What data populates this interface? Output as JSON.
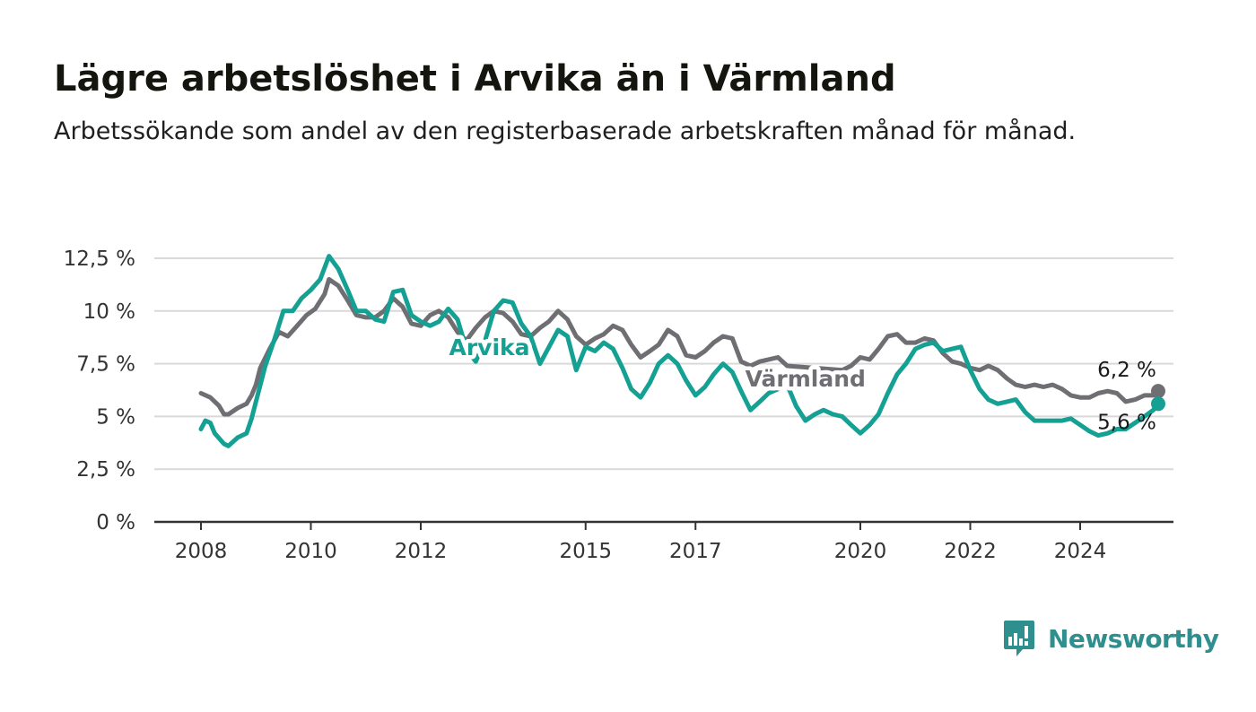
{
  "header": {
    "title": "Lägre arbetslöshet i Arvika än i Värmland",
    "subtitle": "Arbetssökande som andel av den registerbaserade arbetskraften månad för månad."
  },
  "brand": {
    "name": "Newsworthy",
    "color": "#2f8e8e"
  },
  "chart_data": {
    "type": "line",
    "title": "Lägre arbetslöshet i Arvika än i Värmland",
    "subtitle": "Arbetssökande som andel av den registerbaserade arbetskraften månad för månad.",
    "xlabel": "",
    "ylabel": "",
    "ylim": [
      0,
      12.5
    ],
    "xlim": [
      2007.3,
      2025.75
    ],
    "yticks": [
      0,
      2.5,
      5,
      7.5,
      10,
      12.5
    ],
    "ytick_labels": [
      "0 %",
      "2,5 %",
      "5 %",
      "7,5 %",
      "10 %",
      "12,5 %"
    ],
    "xticks": [
      2008,
      2010,
      2012,
      2015,
      2017,
      2020,
      2022,
      2024
    ],
    "xtick_labels": [
      "2008",
      "2010",
      "2012",
      "2015",
      "2017",
      "2020",
      "2022",
      "2024"
    ],
    "grid": true,
    "series": [
      {
        "name": "Värmland",
        "color": "#6e6e73",
        "end_label": "6,2 %",
        "points": [
          [
            2008.0,
            6.1
          ],
          [
            2008.17,
            5.9
          ],
          [
            2008.33,
            5.5
          ],
          [
            2008.42,
            5.1
          ],
          [
            2008.5,
            5.1
          ],
          [
            2008.67,
            5.4
          ],
          [
            2008.83,
            5.6
          ],
          [
            2008.92,
            6.0
          ],
          [
            2009.0,
            6.5
          ],
          [
            2009.08,
            7.3
          ],
          [
            2009.25,
            8.2
          ],
          [
            2009.42,
            9.0
          ],
          [
            2009.58,
            8.8
          ],
          [
            2009.75,
            9.3
          ],
          [
            2009.92,
            9.8
          ],
          [
            2010.08,
            10.1
          ],
          [
            2010.25,
            10.8
          ],
          [
            2010.33,
            11.5
          ],
          [
            2010.5,
            11.2
          ],
          [
            2010.67,
            10.5
          ],
          [
            2010.83,
            9.8
          ],
          [
            2011.0,
            9.7
          ],
          [
            2011.17,
            9.7
          ],
          [
            2011.33,
            10.0
          ],
          [
            2011.5,
            10.6
          ],
          [
            2011.67,
            10.2
          ],
          [
            2011.83,
            9.4
          ],
          [
            2012.0,
            9.3
          ],
          [
            2012.17,
            9.8
          ],
          [
            2012.33,
            10.0
          ],
          [
            2012.5,
            9.7
          ],
          [
            2012.67,
            9.0
          ],
          [
            2012.83,
            8.6
          ],
          [
            2013.0,
            9.2
          ],
          [
            2013.17,
            9.7
          ],
          [
            2013.33,
            10.0
          ],
          [
            2013.5,
            9.9
          ],
          [
            2013.67,
            9.5
          ],
          [
            2013.83,
            8.9
          ],
          [
            2014.0,
            8.8
          ],
          [
            2014.17,
            9.2
          ],
          [
            2014.33,
            9.5
          ],
          [
            2014.5,
            10.0
          ],
          [
            2014.67,
            9.6
          ],
          [
            2014.83,
            8.8
          ],
          [
            2015.0,
            8.4
          ],
          [
            2015.17,
            8.7
          ],
          [
            2015.33,
            8.9
          ],
          [
            2015.5,
            9.3
          ],
          [
            2015.67,
            9.1
          ],
          [
            2015.83,
            8.4
          ],
          [
            2016.0,
            7.8
          ],
          [
            2016.17,
            8.1
          ],
          [
            2016.33,
            8.4
          ],
          [
            2016.5,
            9.1
          ],
          [
            2016.67,
            8.8
          ],
          [
            2016.83,
            7.9
          ],
          [
            2017.0,
            7.8
          ],
          [
            2017.17,
            8.1
          ],
          [
            2017.33,
            8.5
          ],
          [
            2017.5,
            8.8
          ],
          [
            2017.67,
            8.7
          ],
          [
            2017.83,
            7.6
          ],
          [
            2018.0,
            7.4
          ],
          [
            2018.17,
            7.6
          ],
          [
            2018.33,
            7.7
          ],
          [
            2018.5,
            7.8
          ],
          [
            2018.67,
            7.4
          ],
          [
            2019.67,
            7.2
          ],
          [
            2019.83,
            7.4
          ],
          [
            2020.0,
            7.8
          ],
          [
            2020.17,
            7.7
          ],
          [
            2020.33,
            8.2
          ],
          [
            2020.5,
            8.8
          ],
          [
            2020.67,
            8.9
          ],
          [
            2020.83,
            8.5
          ],
          [
            2021.0,
            8.5
          ],
          [
            2021.17,
            8.7
          ],
          [
            2021.33,
            8.6
          ],
          [
            2021.5,
            8.0
          ],
          [
            2021.67,
            7.6
          ],
          [
            2021.83,
            7.5
          ],
          [
            2022.0,
            7.3
          ],
          [
            2022.17,
            7.2
          ],
          [
            2022.33,
            7.4
          ],
          [
            2022.5,
            7.2
          ],
          [
            2022.67,
            6.8
          ],
          [
            2022.83,
            6.5
          ],
          [
            2023.0,
            6.4
          ],
          [
            2023.17,
            6.5
          ],
          [
            2023.33,
            6.4
          ],
          [
            2023.5,
            6.5
          ],
          [
            2023.67,
            6.3
          ],
          [
            2023.83,
            6.0
          ],
          [
            2024.0,
            5.9
          ],
          [
            2024.17,
            5.9
          ],
          [
            2024.33,
            6.1
          ],
          [
            2024.5,
            6.2
          ],
          [
            2024.67,
            6.1
          ],
          [
            2024.83,
            5.7
          ],
          [
            2025.0,
            5.8
          ],
          [
            2025.17,
            6.0
          ],
          [
            2025.33,
            6.0
          ],
          [
            2025.42,
            6.2
          ]
        ]
      },
      {
        "name": "Arvika",
        "color": "#14a093",
        "end_label": "5,6 %",
        "points": [
          [
            2008.0,
            4.4
          ],
          [
            2008.08,
            4.8
          ],
          [
            2008.17,
            4.7
          ],
          [
            2008.25,
            4.2
          ],
          [
            2008.42,
            3.7
          ],
          [
            2008.5,
            3.6
          ],
          [
            2008.67,
            4.0
          ],
          [
            2008.83,
            4.2
          ],
          [
            2008.92,
            4.9
          ],
          [
            2009.0,
            5.7
          ],
          [
            2009.17,
            7.4
          ],
          [
            2009.33,
            8.6
          ],
          [
            2009.5,
            10.0
          ],
          [
            2009.67,
            10.0
          ],
          [
            2009.83,
            10.6
          ],
          [
            2010.0,
            11.0
          ],
          [
            2010.17,
            11.5
          ],
          [
            2010.33,
            12.6
          ],
          [
            2010.5,
            12.0
          ],
          [
            2010.67,
            11.0
          ],
          [
            2010.83,
            10.0
          ],
          [
            2011.0,
            10.0
          ],
          [
            2011.17,
            9.6
          ],
          [
            2011.33,
            9.5
          ],
          [
            2011.5,
            10.9
          ],
          [
            2011.67,
            11.0
          ],
          [
            2011.83,
            9.8
          ],
          [
            2012.0,
            9.5
          ],
          [
            2012.17,
            9.3
          ],
          [
            2012.33,
            9.5
          ],
          [
            2012.5,
            10.1
          ],
          [
            2012.67,
            9.6
          ],
          [
            2012.83,
            8.2
          ],
          [
            2013.0,
            7.6
          ],
          [
            2013.17,
            8.6
          ],
          [
            2013.33,
            10.0
          ],
          [
            2013.5,
            10.5
          ],
          [
            2013.67,
            10.4
          ],
          [
            2013.83,
            9.4
          ],
          [
            2014.0,
            8.8
          ],
          [
            2014.17,
            7.5
          ],
          [
            2014.5,
            9.1
          ],
          [
            2014.67,
            8.8
          ],
          [
            2014.83,
            7.2
          ],
          [
            2015.0,
            8.3
          ],
          [
            2015.17,
            8.1
          ],
          [
            2015.33,
            8.5
          ],
          [
            2015.5,
            8.2
          ],
          [
            2015.67,
            7.3
          ],
          [
            2015.83,
            6.3
          ],
          [
            2016.0,
            5.9
          ],
          [
            2016.17,
            6.6
          ],
          [
            2016.33,
            7.5
          ],
          [
            2016.5,
            7.9
          ],
          [
            2016.67,
            7.5
          ],
          [
            2016.83,
            6.7
          ],
          [
            2017.0,
            6.0
          ],
          [
            2017.17,
            6.4
          ],
          [
            2017.33,
            7.0
          ],
          [
            2017.5,
            7.5
          ],
          [
            2017.67,
            7.1
          ],
          [
            2017.83,
            6.2
          ],
          [
            2018.0,
            5.3
          ],
          [
            2018.17,
            5.7
          ],
          [
            2018.33,
            6.1
          ],
          [
            2018.5,
            6.3
          ],
          [
            2018.67,
            6.5
          ],
          [
            2018.83,
            5.5
          ],
          [
            2019.0,
            4.8
          ],
          [
            2019.17,
            5.1
          ],
          [
            2019.33,
            5.3
          ],
          [
            2019.5,
            5.1
          ],
          [
            2019.67,
            5.0
          ],
          [
            2019.83,
            4.6
          ],
          [
            2020.0,
            4.2
          ],
          [
            2020.17,
            4.6
          ],
          [
            2020.33,
            5.1
          ],
          [
            2020.5,
            6.1
          ],
          [
            2020.67,
            7.0
          ],
          [
            2020.83,
            7.5
          ],
          [
            2021.0,
            8.2
          ],
          [
            2021.17,
            8.4
          ],
          [
            2021.33,
            8.5
          ],
          [
            2021.5,
            8.1
          ],
          [
            2021.67,
            8.2
          ],
          [
            2021.83,
            8.3
          ],
          [
            2022.0,
            7.2
          ],
          [
            2022.17,
            6.3
          ],
          [
            2022.33,
            5.8
          ],
          [
            2022.5,
            5.6
          ],
          [
            2022.67,
            5.7
          ],
          [
            2022.83,
            5.8
          ],
          [
            2023.0,
            5.2
          ],
          [
            2023.17,
            4.8
          ],
          [
            2023.33,
            4.8
          ],
          [
            2023.5,
            4.8
          ],
          [
            2023.67,
            4.8
          ],
          [
            2023.83,
            4.9
          ],
          [
            2024.0,
            4.6
          ],
          [
            2024.17,
            4.3
          ],
          [
            2024.33,
            4.1
          ],
          [
            2024.5,
            4.2
          ],
          [
            2024.67,
            4.4
          ],
          [
            2024.83,
            4.4
          ],
          [
            2025.0,
            4.7
          ],
          [
            2025.17,
            5.0
          ],
          [
            2025.33,
            5.3
          ],
          [
            2025.42,
            5.6
          ]
        ]
      }
    ],
    "annotations": [
      {
        "text": "Arvika",
        "series": "Arvika",
        "at": [
          2014.0,
          8.3
        ]
      },
      {
        "text": "Värmland",
        "series": "Värmland",
        "at": [
          2019.0,
          6.8
        ]
      }
    ]
  }
}
